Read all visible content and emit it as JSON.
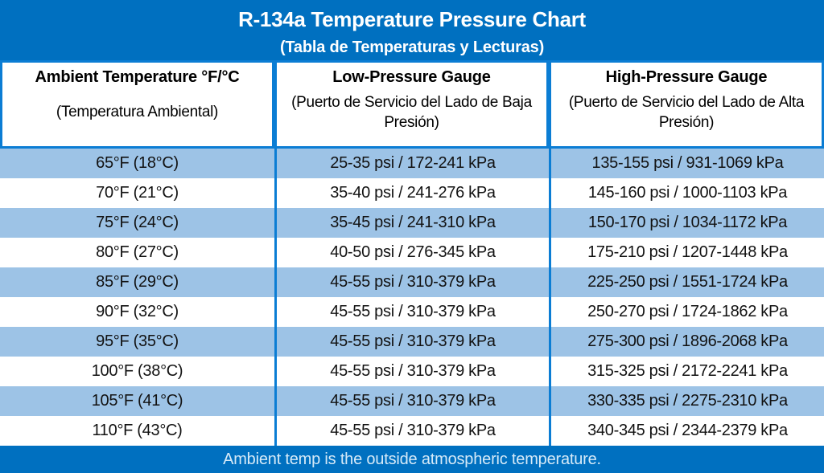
{
  "chart_data": {
    "type": "table",
    "title": "R-134a Temperature Pressure Chart",
    "subtitle": "(Tabla de Temperaturas y Lecturas)",
    "columns": [
      {
        "label_en": "Ambient Temperature °F/°C",
        "label_es": "(Temperatura Ambiental)"
      },
      {
        "label_en": "Low-Pressure Gauge",
        "label_es": "(Puerto de Servicio del Lado de Baja Presión)"
      },
      {
        "label_en": "High-Pressure Gauge",
        "label_es": "(Puerto de Servicio del Lado de Alta Presión)"
      }
    ],
    "rows": [
      [
        "65°F (18°C)",
        "25-35 psi / 172-241 kPa",
        "135-155 psi / 931-1069 kPa"
      ],
      [
        "70°F (21°C)",
        "35-40 psi / 241-276 kPa",
        "145-160 psi / 1000-1103 kPa"
      ],
      [
        "75°F (24°C)",
        "35-45 psi / 241-310 kPa",
        "150-170 psi / 1034-1172 kPa"
      ],
      [
        "80°F (27°C)",
        "40-50 psi / 276-345 kPa",
        "175-210 psi / 1207-1448 kPa"
      ],
      [
        "85°F (29°C)",
        "45-55 psi / 310-379 kPa",
        "225-250 psi / 1551-1724 kPa"
      ],
      [
        "90°F (32°C)",
        "45-55 psi / 310-379 kPa",
        "250-270 psi / 1724-1862 kPa"
      ],
      [
        "95°F (35°C)",
        "45-55 psi / 310-379 kPa",
        "275-300 psi / 1896-2068 kPa"
      ],
      [
        "100°F (38°C)",
        "45-55 psi / 310-379 kPa",
        "315-325 psi / 2172-2241 kPa"
      ],
      [
        "105°F (41°C)",
        "45-55 psi / 310-379 kPa",
        "330-335 psi / 2275-2310 kPa"
      ],
      [
        "110°F (43°C)",
        "45-55 psi / 310-379 kPa",
        "340-345 psi / 2344-2379 kPa"
      ]
    ],
    "row_striping": "first row shaded, alternating",
    "footer_note": "Ambient temp is the outside atmospheric temperature."
  },
  "footer": {
    "note": "Ambient temp is the outside atmospheric temperature."
  },
  "colors": {
    "background_blue": "#0070C0",
    "row_alt_blue": "#9DC3E6",
    "row_plain": "#FFFFFF",
    "border_blue": "#0B7DD4",
    "banner_text": "#FFFFFF",
    "cell_text": "#121212",
    "footer_text": "#D6EAF8"
  }
}
